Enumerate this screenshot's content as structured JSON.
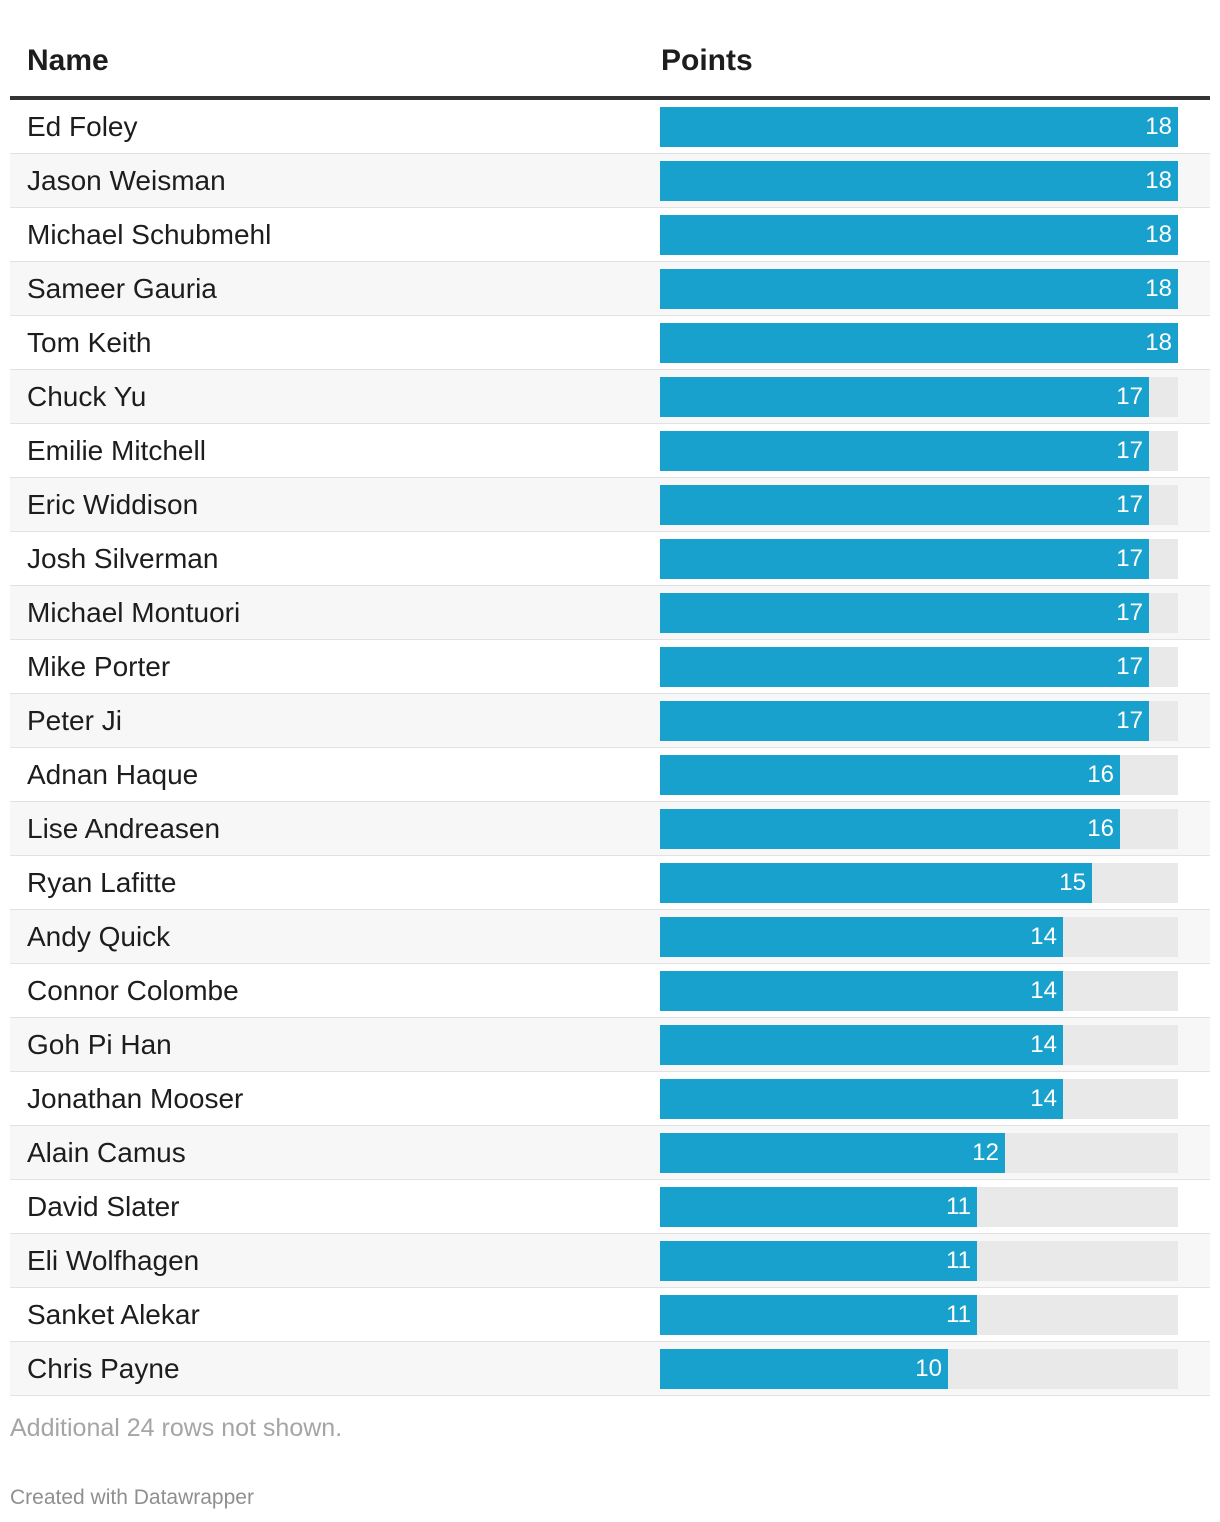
{
  "table": {
    "col_name": "Name",
    "col_points": "Points"
  },
  "chart_data": {
    "type": "table",
    "columns": [
      "Name",
      "Points"
    ],
    "xlim": [
      0,
      18
    ],
    "bar_color": "#18a1cd",
    "track_color": "#e9e9e9",
    "rows": [
      {
        "name": "Ed Foley",
        "points": 18
      },
      {
        "name": "Jason Weisman",
        "points": 18
      },
      {
        "name": "Michael Schubmehl",
        "points": 18
      },
      {
        "name": "Sameer Gauria",
        "points": 18
      },
      {
        "name": "Tom Keith",
        "points": 18
      },
      {
        "name": "Chuck Yu",
        "points": 17
      },
      {
        "name": "Emilie Mitchell",
        "points": 17
      },
      {
        "name": "Eric Widdison",
        "points": 17
      },
      {
        "name": "Josh Silverman",
        "points": 17
      },
      {
        "name": "Michael Montuori",
        "points": 17
      },
      {
        "name": "Mike Porter",
        "points": 17
      },
      {
        "name": "Peter Ji",
        "points": 17
      },
      {
        "name": "Adnan Haque",
        "points": 16
      },
      {
        "name": "Lise Andreasen",
        "points": 16
      },
      {
        "name": "Ryan Lafitte",
        "points": 15
      },
      {
        "name": "Andy Quick",
        "points": 14
      },
      {
        "name": "Connor Colombe",
        "points": 14
      },
      {
        "name": "Goh Pi Han",
        "points": 14
      },
      {
        "name": "Jonathan Mooser",
        "points": 14
      },
      {
        "name": "Alain Camus",
        "points": 12
      },
      {
        "name": "David Slater",
        "points": 11
      },
      {
        "name": "Eli Wolfhagen",
        "points": 11
      },
      {
        "name": "Sanket Alekar",
        "points": 11
      },
      {
        "name": "Chris Payne",
        "points": 10
      }
    ]
  },
  "footnote": "Additional 24 rows not shown.",
  "credit": "Created with Datawrapper"
}
